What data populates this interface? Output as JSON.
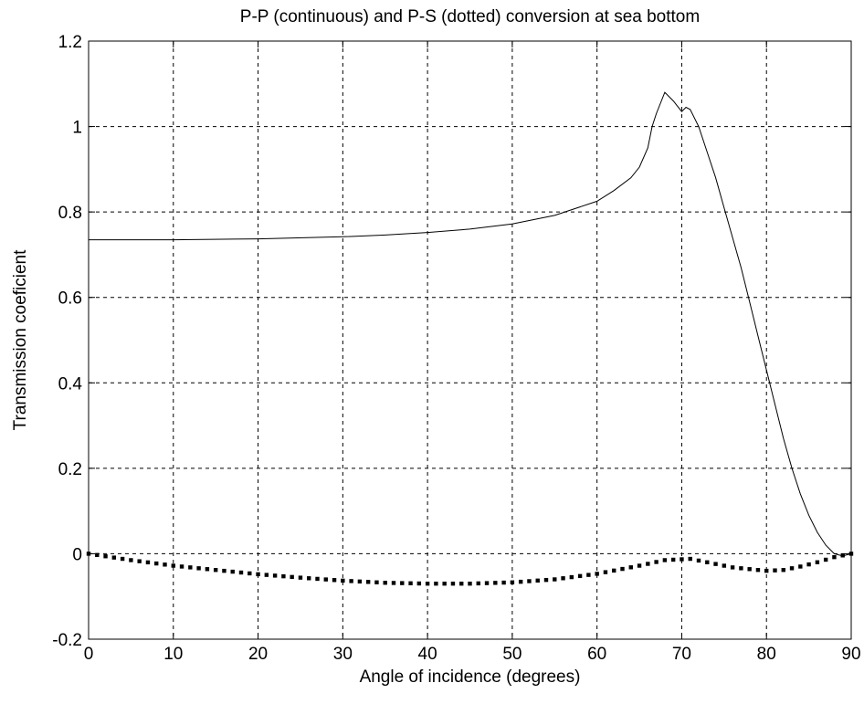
{
  "chart_data": {
    "type": "line",
    "title": "P-P (continuous) and P-S (dotted) conversion at sea bottom",
    "xlabel": "Angle of incidence (degrees)",
    "ylabel": "Transmission coeficient",
    "xlim": [
      0,
      90
    ],
    "ylim": [
      -0.2,
      1.2
    ],
    "xticks": [
      0,
      10,
      20,
      30,
      40,
      50,
      60,
      70,
      80,
      90
    ],
    "yticks": [
      -0.2,
      0,
      0.2,
      0.4,
      0.6,
      0.8,
      1,
      1.2
    ],
    "xtick_labels": [
      "0",
      "10",
      "20",
      "30",
      "40",
      "50",
      "60",
      "70",
      "80",
      "90"
    ],
    "ytick_labels": [
      "-0.2",
      "0",
      "0.2",
      "0.4",
      "0.6",
      "0.8",
      "1",
      "1.2"
    ],
    "grid": true,
    "series": [
      {
        "style": "solid",
        "x": [
          0,
          10,
          20,
          30,
          35,
          40,
          45,
          50,
          55,
          60,
          62,
          64,
          65,
          66,
          66.5,
          67,
          68,
          69,
          70,
          70.5,
          71,
          72,
          73,
          74,
          75,
          76,
          77,
          78,
          79,
          80,
          81,
          82,
          83,
          84,
          85,
          86,
          87,
          88,
          89,
          90
        ],
        "y": [
          0.735,
          0.735,
          0.737,
          0.742,
          0.746,
          0.752,
          0.76,
          0.772,
          0.792,
          0.825,
          0.85,
          0.88,
          0.905,
          0.95,
          1.0,
          1.03,
          1.08,
          1.06,
          1.035,
          1.045,
          1.04,
          1.0,
          0.94,
          0.88,
          0.81,
          0.74,
          0.67,
          0.59,
          0.51,
          0.43,
          0.35,
          0.27,
          0.2,
          0.14,
          0.09,
          0.05,
          0.02,
          0.0,
          -0.005,
          0.0
        ]
      },
      {
        "style": "dotted",
        "x": [
          0,
          5,
          10,
          15,
          20,
          25,
          30,
          35,
          40,
          45,
          50,
          55,
          60,
          65,
          68,
          70,
          71,
          73,
          76,
          80,
          82,
          84,
          86,
          88,
          90
        ],
        "y": [
          0.0,
          -0.015,
          -0.028,
          -0.038,
          -0.048,
          -0.056,
          -0.063,
          -0.068,
          -0.07,
          -0.07,
          -0.067,
          -0.06,
          -0.047,
          -0.028,
          -0.015,
          -0.013,
          -0.012,
          -0.02,
          -0.032,
          -0.04,
          -0.038,
          -0.03,
          -0.02,
          -0.008,
          0.0
        ]
      }
    ]
  }
}
